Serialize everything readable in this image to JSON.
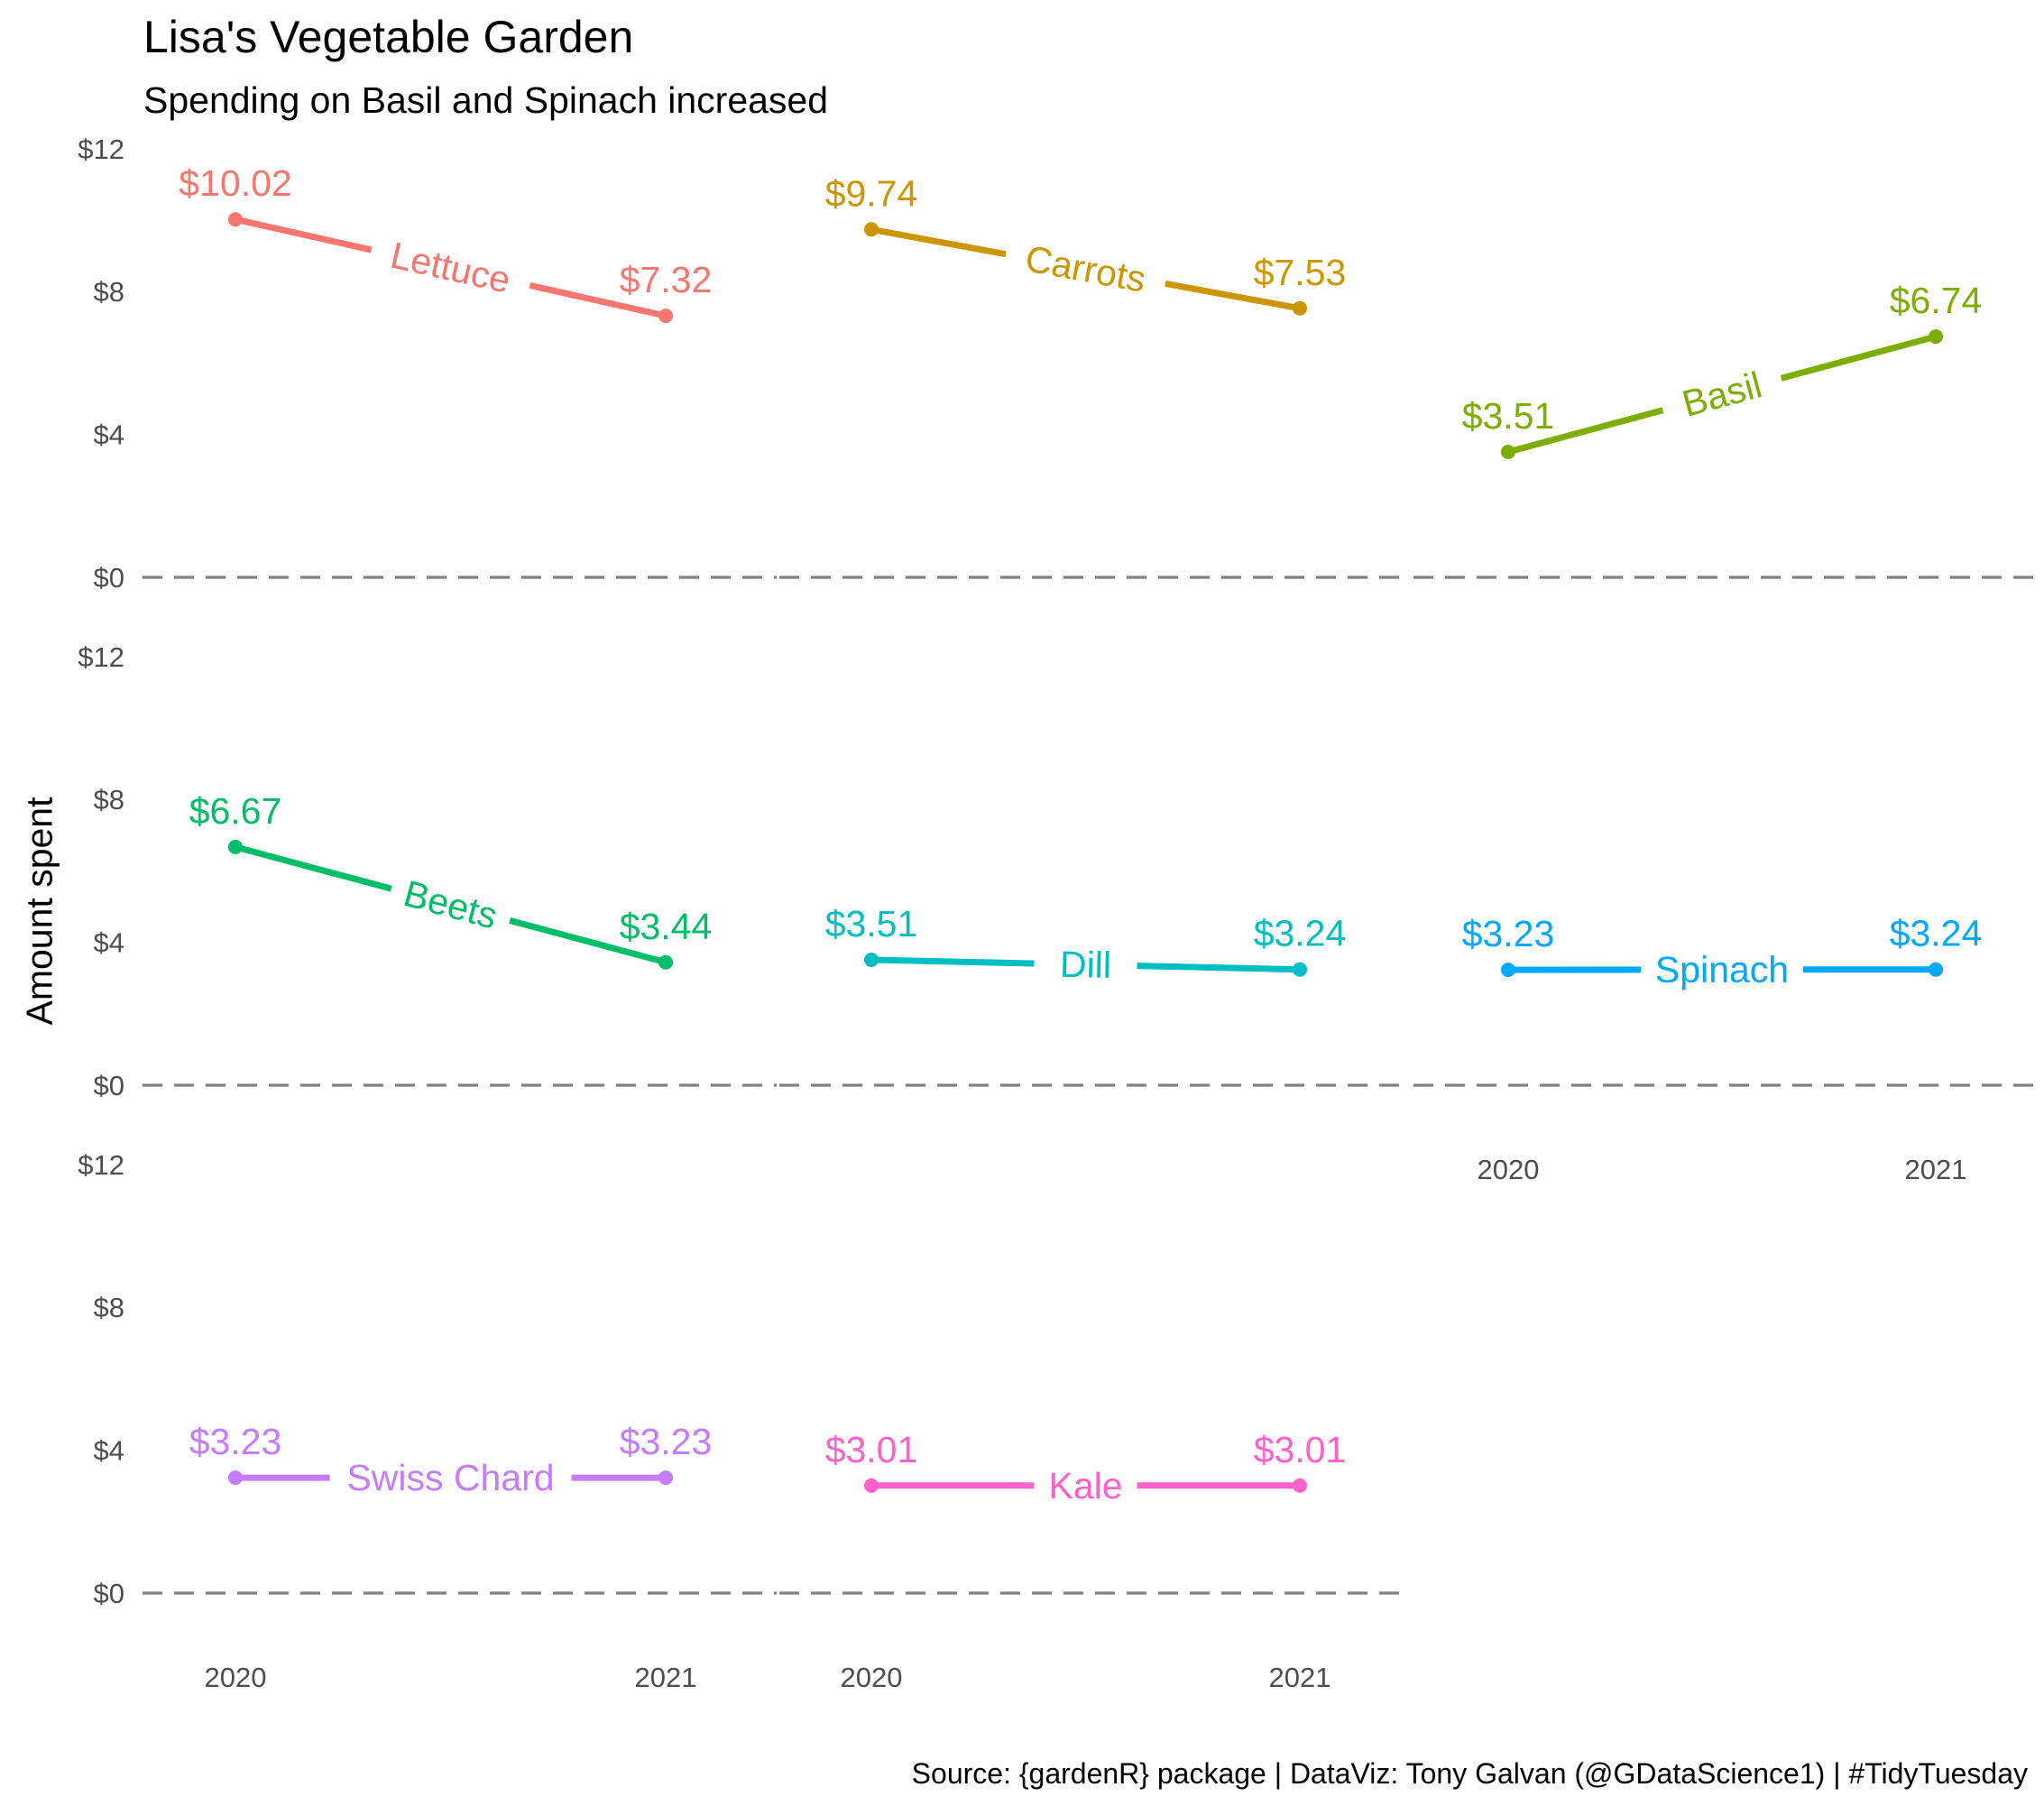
{
  "chart_data": {
    "type": "line",
    "title": "Lisa's Vegetable Garden",
    "subtitle": "Spending on Basil and Spinach increased",
    "ylabel": "Amount spent",
    "xlabel": "",
    "caption": "Source: {gardenR} package  |  DataViz: Tony Galvan (@GDataScience1)  |  #TidyTuesday",
    "x": [
      "2020",
      "2021"
    ],
    "ylim": [
      0,
      12
    ],
    "y_ticks": [
      "$0",
      "$4",
      "$8",
      "$12"
    ],
    "y_tick_values": [
      0,
      4,
      8,
      12
    ],
    "reference_line": {
      "y": 0,
      "style": "dashed",
      "color": "#808080"
    },
    "facets": [
      {
        "name": "Lettuce",
        "values": [
          10.02,
          7.32
        ],
        "labels": [
          "$10.02",
          "$7.32"
        ],
        "color": "#F8766D",
        "show_x": false
      },
      {
        "name": "Carrots",
        "values": [
          9.74,
          7.53
        ],
        "labels": [
          "$9.74",
          "$7.53"
        ],
        "color": "#CD9600",
        "show_x": false
      },
      {
        "name": "Basil",
        "values": [
          3.51,
          6.74
        ],
        "labels": [
          "$3.51",
          "$6.74"
        ],
        "color": "#7CAE00",
        "show_x": false
      },
      {
        "name": "Beets",
        "values": [
          6.67,
          3.44
        ],
        "labels": [
          "$6.67",
          "$3.44"
        ],
        "color": "#00BE67",
        "show_x": false
      },
      {
        "name": "Dill",
        "values": [
          3.51,
          3.24
        ],
        "labels": [
          "$3.51",
          "$3.24"
        ],
        "color": "#00BFC4",
        "show_x": false
      },
      {
        "name": "Spinach",
        "values": [
          3.23,
          3.24
        ],
        "labels": [
          "$3.23",
          "$3.24"
        ],
        "color": "#00A9FF",
        "show_x": true
      },
      {
        "name": "Swiss Chard",
        "values": [
          3.23,
          3.23
        ],
        "labels": [
          "$3.23",
          "$3.23"
        ],
        "color": "#C77CFF",
        "show_x": true
      },
      {
        "name": "Kale",
        "values": [
          3.01,
          3.01
        ],
        "labels": [
          "$3.01",
          "$3.01"
        ],
        "color": "#FF61CC",
        "show_x": true
      }
    ]
  }
}
